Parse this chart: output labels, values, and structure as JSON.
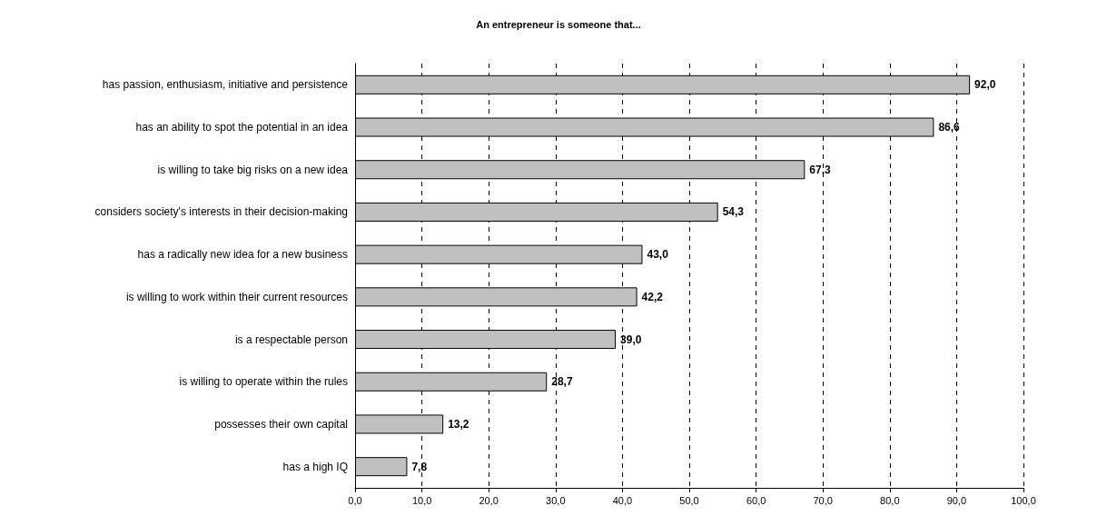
{
  "chart_data": {
    "type": "bar",
    "orientation": "horizontal",
    "title": "An entrepreneur is someone that...",
    "categories": [
      "has passion, enthusiasm, initiative and persistence",
      "has an ability to spot the potential in an idea",
      "is willing to take big risks on a new idea",
      "considers society's interests in their decision-making",
      "has a radically new idea for a new business",
      "is willing to work within their current resources",
      "is a respectable person",
      "is willing to operate within the rules",
      "possesses their own capital",
      "has a high IQ"
    ],
    "values": [
      92.0,
      86.6,
      67.3,
      54.3,
      43.0,
      42.2,
      39.0,
      28.7,
      13.2,
      7.8
    ],
    "value_labels": [
      "92,0",
      "86,6",
      "67,3",
      "54,3",
      "43,0",
      "42,2",
      "39,0",
      "28,7",
      "13,2",
      "7,8"
    ],
    "color": "#c0c0c0",
    "xlim": [
      0,
      100
    ],
    "xticks": [
      {
        "value": 0,
        "label": "0,0"
      },
      {
        "value": 10,
        "label": "10,0"
      },
      {
        "value": 20,
        "label": "20,0"
      },
      {
        "value": 30,
        "label": "30,0"
      },
      {
        "value": 40,
        "label": "40,0"
      },
      {
        "value": 50,
        "label": "50,0"
      },
      {
        "value": 60,
        "label": "60,0"
      },
      {
        "value": 70,
        "label": "70,0"
      },
      {
        "value": 80,
        "label": "80,0"
      },
      {
        "value": 90,
        "label": "90,0"
      },
      {
        "value": 100,
        "label": "100,0"
      }
    ],
    "grid": "x"
  }
}
